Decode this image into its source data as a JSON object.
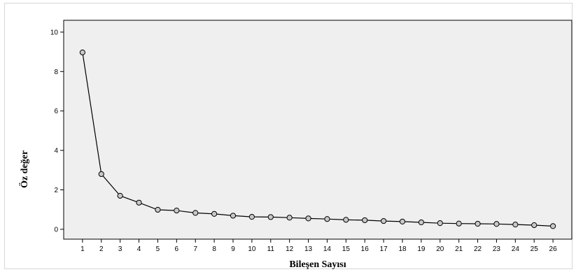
{
  "chart_data": {
    "type": "line",
    "title": "",
    "xlabel": "Bileşen Sayısı",
    "ylabel": "Öz değer",
    "x": [
      1,
      2,
      3,
      4,
      5,
      6,
      7,
      8,
      9,
      10,
      11,
      12,
      13,
      14,
      15,
      16,
      17,
      18,
      19,
      20,
      21,
      22,
      23,
      24,
      25,
      26
    ],
    "series": [
      {
        "values": [
          8.97,
          2.8,
          1.7,
          1.35,
          0.99,
          0.95,
          0.83,
          0.78,
          0.69,
          0.63,
          0.62,
          0.59,
          0.55,
          0.52,
          0.48,
          0.46,
          0.42,
          0.39,
          0.35,
          0.31,
          0.29,
          0.28,
          0.27,
          0.24,
          0.21,
          0.16
        ]
      }
    ],
    "xlim": [
      0,
      27
    ],
    "ylim": [
      -0.5,
      10.6
    ],
    "yticks": [
      0,
      2,
      4,
      6,
      8,
      10
    ],
    "grid": false,
    "colors": {
      "plot_background": "#efefef",
      "line": "#000000",
      "marker_fill": "#c8c8c8"
    }
  }
}
